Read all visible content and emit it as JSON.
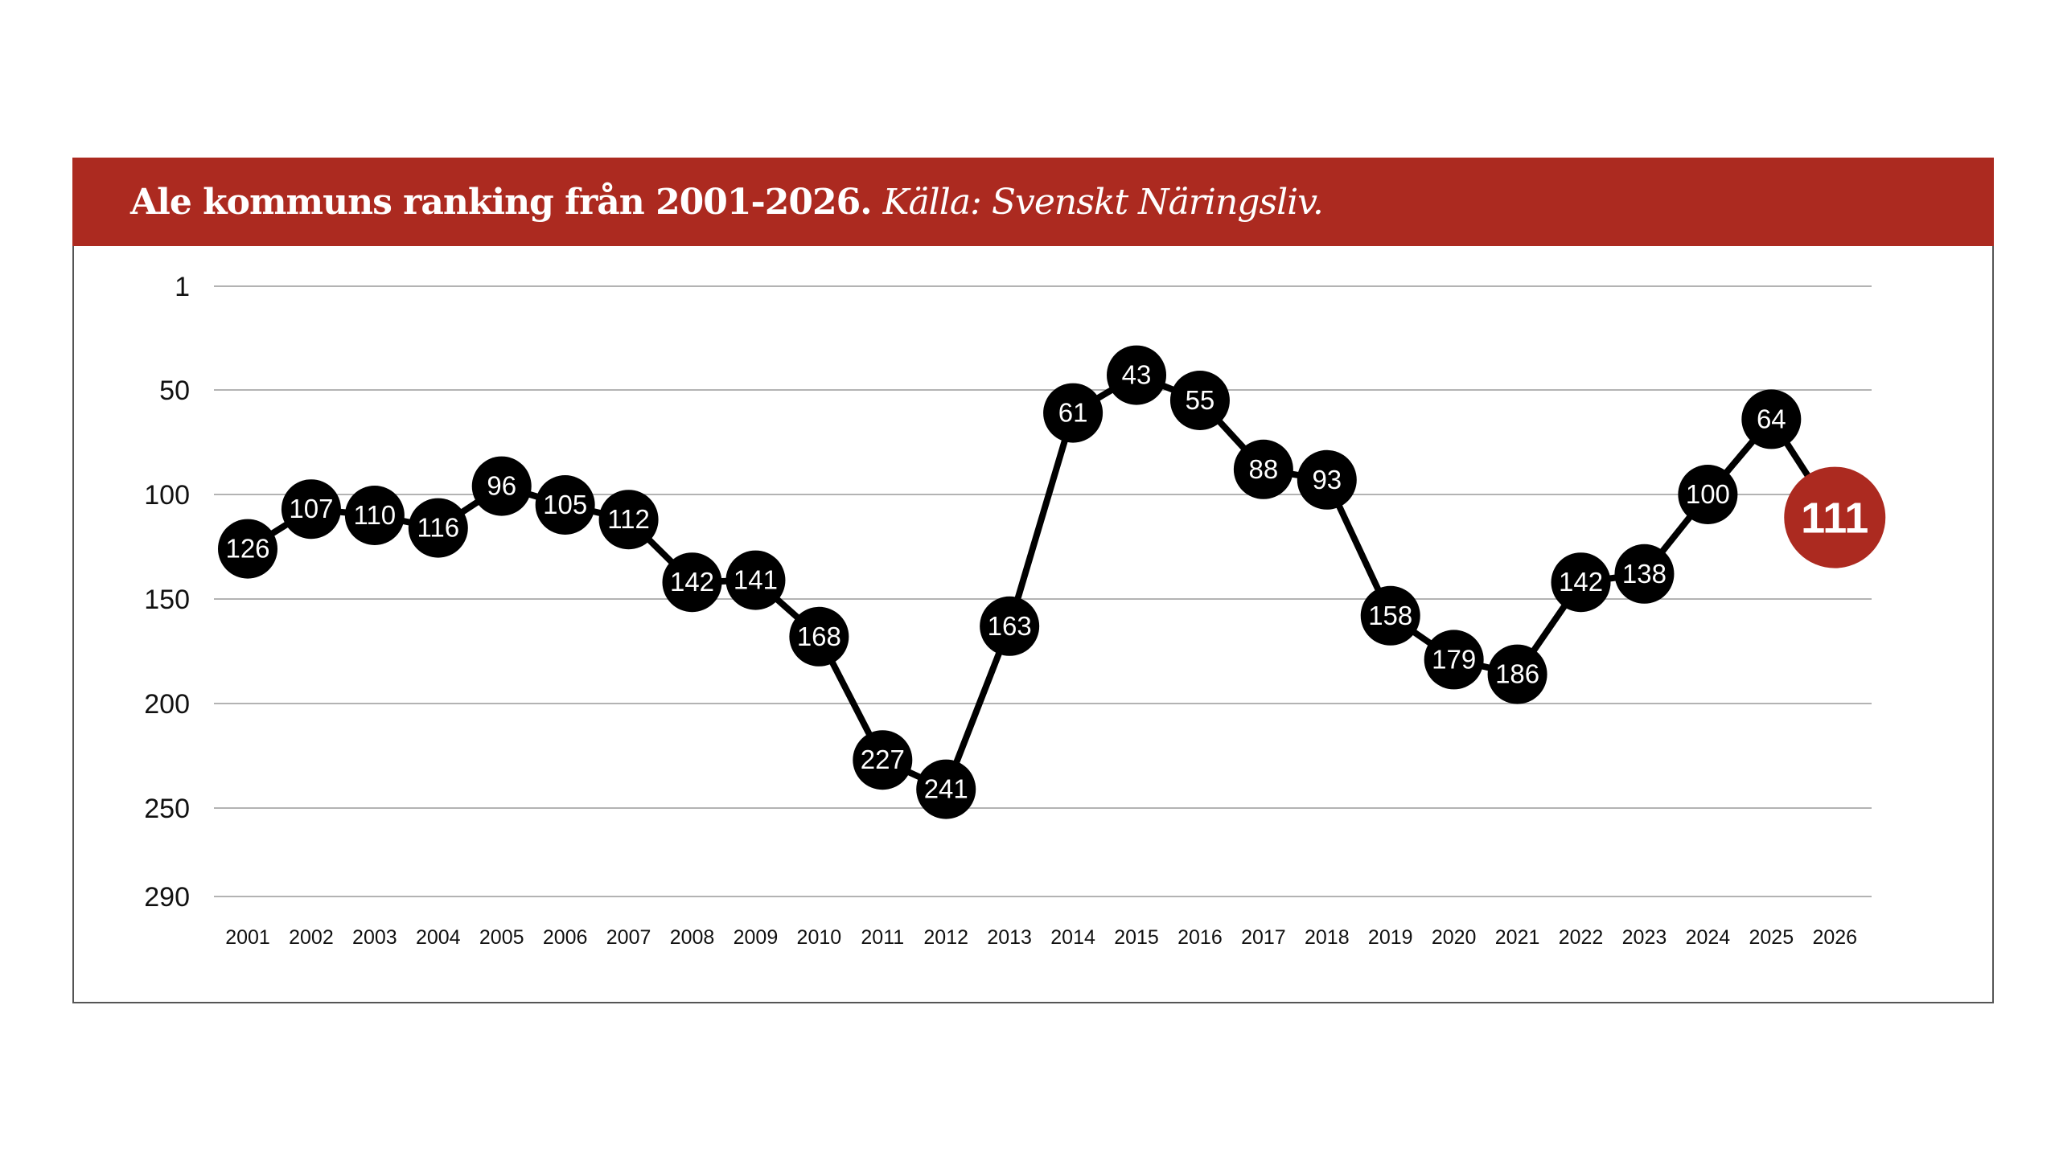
{
  "header": {
    "title": "Ale kommuns ranking från 2001-2026.",
    "source": "Källa: Svenskt Näringsliv."
  },
  "colors": {
    "banner": "#ac2a20",
    "highlight": "#ac2a20",
    "marker": "#000000",
    "gridline": "#9a9a9a"
  },
  "chart_data": {
    "type": "line",
    "title": "Ale kommuns ranking från 2001-2026.",
    "subtitle": "Källa: Svenskt Näringsliv.",
    "xlabel": "",
    "ylabel": "",
    "y_inverted": true,
    "ylim": [
      1,
      290
    ],
    "yticks": [
      1,
      50,
      100,
      150,
      200,
      250,
      290
    ],
    "grid": true,
    "legend": "none",
    "categories": [
      "2001",
      "2002",
      "2003",
      "2004",
      "2005",
      "2006",
      "2007",
      "2008",
      "2009",
      "2010",
      "2011",
      "2012",
      "2013",
      "2014",
      "2015",
      "2016",
      "2017",
      "2018",
      "2019",
      "2020",
      "2021",
      "2022",
      "2023",
      "2024",
      "2025",
      "2026"
    ],
    "series": [
      {
        "values": [
          126,
          107,
          110,
          116,
          96,
          105,
          112,
          142,
          141,
          168,
          227,
          241,
          163,
          61,
          43,
          55,
          88,
          93,
          158,
          179,
          186,
          142,
          138,
          100,
          64,
          111
        ],
        "labels": [
          "126",
          "107",
          "110",
          "116",
          "96",
          "105",
          "112",
          "142",
          "141",
          "168",
          "227",
          "241",
          "163",
          "61",
          "43",
          "55",
          "88",
          "93",
          "158",
          "179",
          "186",
          "142",
          "138",
          "100",
          "64",
          "111"
        ]
      }
    ],
    "highlight_index": 25
  }
}
